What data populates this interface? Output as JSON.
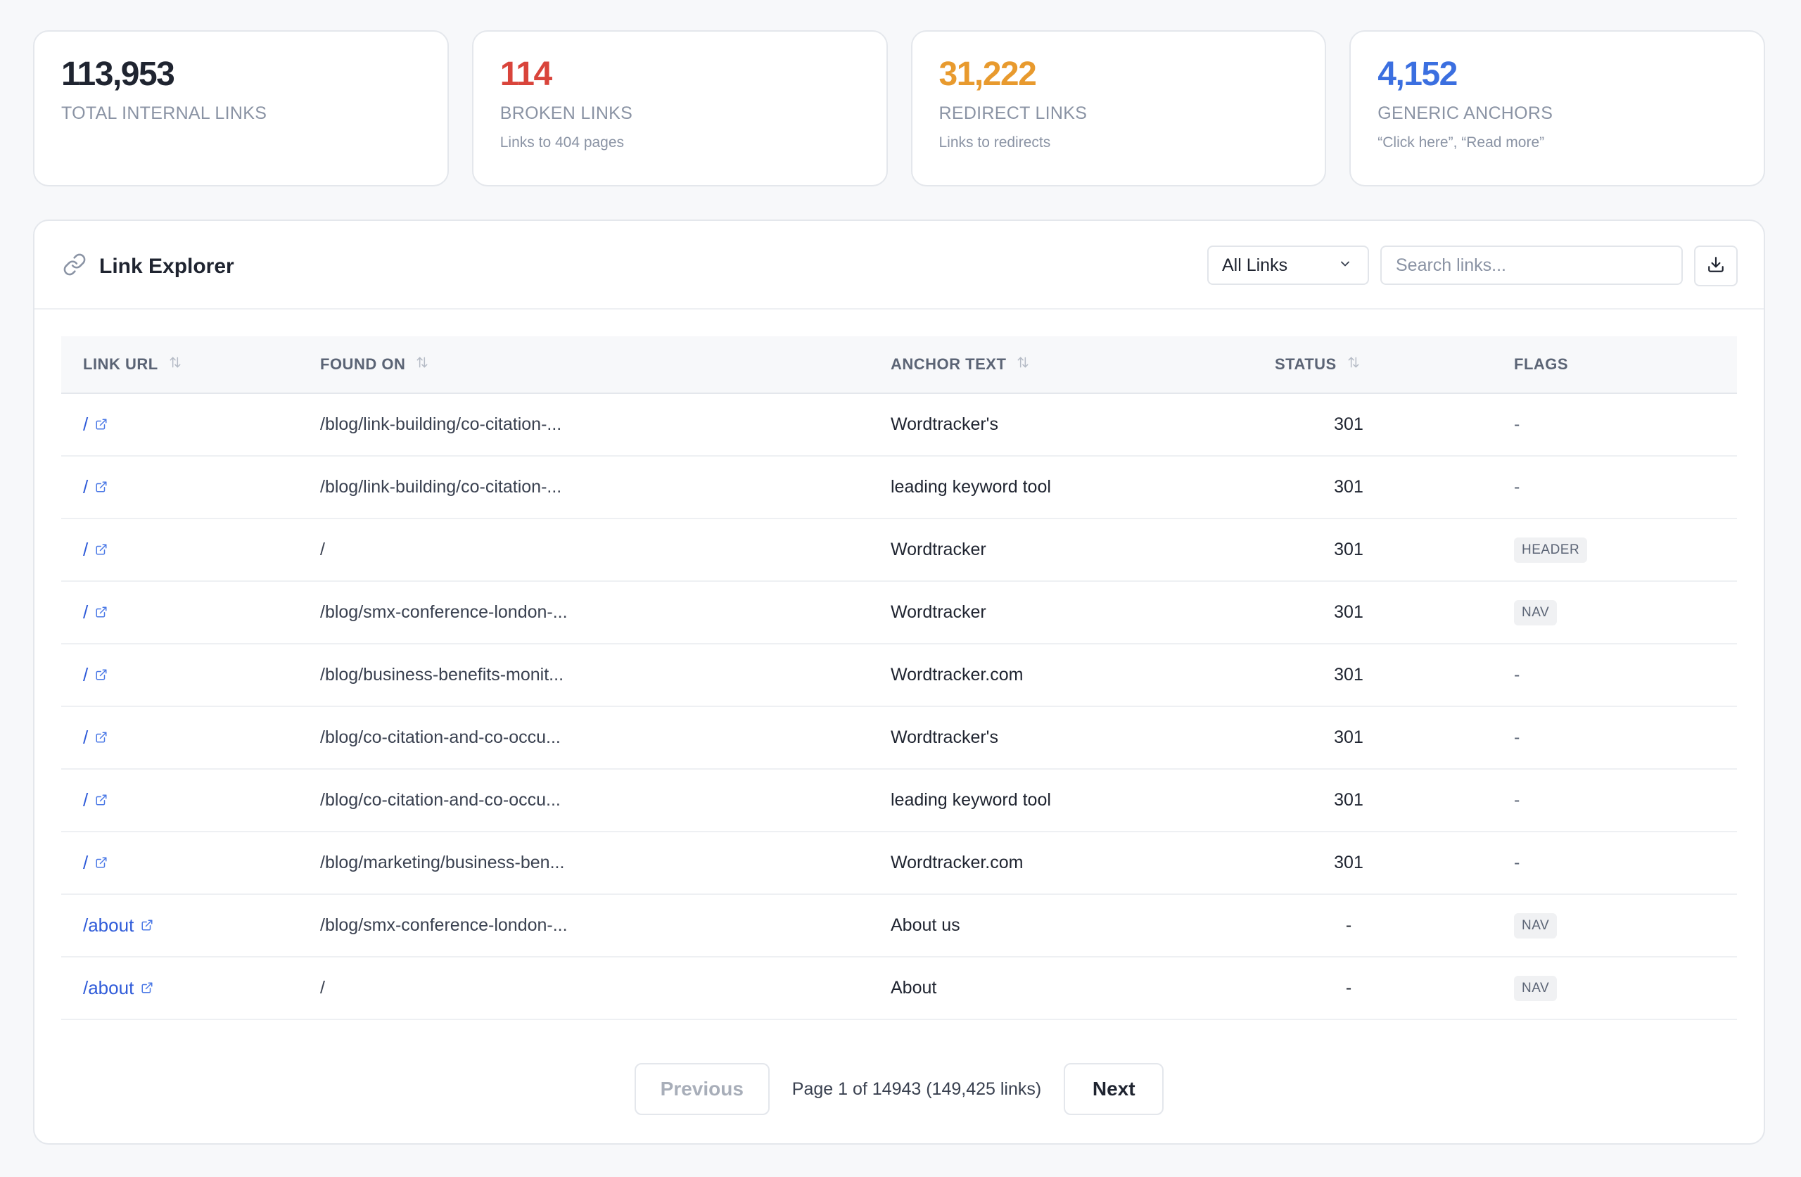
{
  "stats": [
    {
      "value": "113,953",
      "title": "TOTAL INTERNAL LINKS",
      "sub": "",
      "color": "#1f2430"
    },
    {
      "value": "114",
      "title": "BROKEN LINKS",
      "sub": "Links to 404 pages",
      "color": "#d9443b"
    },
    {
      "value": "31,222",
      "title": "REDIRECT LINKS",
      "sub": "Links to redirects",
      "color": "#e89a2e"
    },
    {
      "value": "4,152",
      "title": "GENERIC ANCHORS",
      "sub": "“Click here”, “Read more”",
      "color": "#3b6fe0"
    }
  ],
  "explorer": {
    "title": "Link Explorer",
    "filter_value": "All Links",
    "search_placeholder": "Search links..."
  },
  "table": {
    "headers": [
      "LINK URL",
      "FOUND ON",
      "ANCHOR TEXT",
      "STATUS",
      "FLAGS"
    ],
    "rows": [
      {
        "url": "/",
        "found_on": "/blog/link-building/co-citation-...",
        "anchor": "Wordtracker's",
        "status": "301",
        "flag": "-"
      },
      {
        "url": "/",
        "found_on": "/blog/link-building/co-citation-...",
        "anchor": "leading keyword tool",
        "status": "301",
        "flag": "-"
      },
      {
        "url": "/",
        "found_on": "/",
        "anchor": "Wordtracker",
        "status": "301",
        "flag": "HEADER"
      },
      {
        "url": "/",
        "found_on": "/blog/smx-conference-london-...",
        "anchor": "Wordtracker",
        "status": "301",
        "flag": "NAV"
      },
      {
        "url": "/",
        "found_on": "/blog/business-benefits-monit...",
        "anchor": "Wordtracker.com",
        "status": "301",
        "flag": "-"
      },
      {
        "url": "/",
        "found_on": "/blog/co-citation-and-co-occu...",
        "anchor": "Wordtracker's",
        "status": "301",
        "flag": "-"
      },
      {
        "url": "/",
        "found_on": "/blog/co-citation-and-co-occu...",
        "anchor": "leading keyword tool",
        "status": "301",
        "flag": "-"
      },
      {
        "url": "/",
        "found_on": "/blog/marketing/business-ben...",
        "anchor": "Wordtracker.com",
        "status": "301",
        "flag": "-"
      },
      {
        "url": "/about",
        "found_on": "/blog/smx-conference-london-...",
        "anchor": "About us",
        "status": "-",
        "flag": "NAV"
      },
      {
        "url": "/about",
        "found_on": "/",
        "anchor": "About",
        "status": "-",
        "flag": "NAV"
      }
    ]
  },
  "pagination": {
    "previous_label": "Previous",
    "info": "Page 1 of 14943 (149,425 links)",
    "next_label": "Next"
  }
}
